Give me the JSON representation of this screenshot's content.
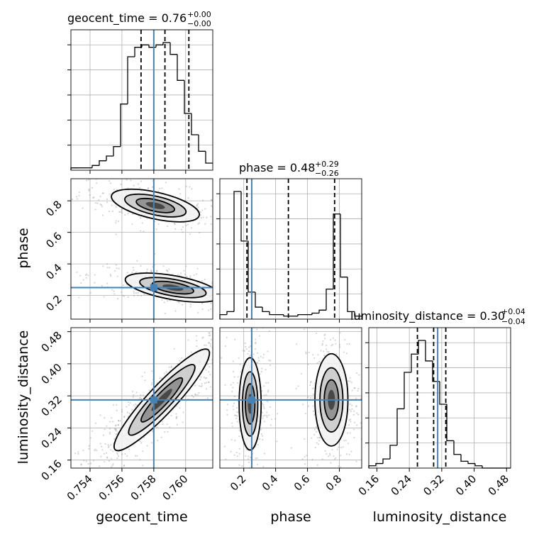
{
  "chart_data": {
    "type": "corner",
    "truth_color": "#4682b4",
    "parameters": [
      {
        "name": "geocent_time",
        "title": "geocent_time = 0.76",
        "title_sup": "+0.00",
        "title_sub": "−0.00",
        "range": [
          0.7528,
          0.7617
        ],
        "ticks": [
          0.754,
          0.756,
          0.758,
          0.76
        ],
        "tick_labels": [
          "0.754",
          "0.756",
          "0.758",
          "0.760"
        ],
        "truth": 0.758,
        "quantiles": [
          0.7572,
          0.7587,
          0.7602
        ],
        "hist_counts": [
          1,
          1,
          1,
          2,
          4,
          6,
          10,
          28,
          48,
          52,
          53,
          52,
          53,
          54,
          49,
          38,
          24,
          15,
          8,
          3
        ]
      },
      {
        "name": "phase",
        "title": "phase = 0.48",
        "title_sup": "+0.29",
        "title_sub": "−0.26",
        "range": [
          0.05,
          0.94
        ],
        "ticks": [
          0.2,
          0.4,
          0.6,
          0.8
        ],
        "tick_labels": [
          "0.2",
          "0.4",
          "0.6",
          "0.8"
        ],
        "truth": 0.25,
        "quantiles": [
          0.22,
          0.48,
          0.77
        ],
        "hist_counts": [
          3,
          5,
          85,
          52,
          18,
          8,
          5,
          3,
          3,
          2,
          2,
          3,
          3,
          4,
          6,
          20,
          70,
          28,
          5,
          2
        ]
      },
      {
        "name": "luminosity_distance",
        "title": "luminosity_distance = 0.30",
        "title_sup": "+0.04",
        "title_sub": "−0.04",
        "range": [
          0.14,
          0.49
        ],
        "ticks": [
          0.16,
          0.24,
          0.32,
          0.4,
          0.48
        ],
        "tick_labels": [
          "0.16",
          "0.24",
          "0.32",
          "0.40",
          "0.48"
        ],
        "truth": 0.31,
        "quantiles": [
          0.26,
          0.3,
          0.33
        ],
        "hist_counts": [
          1,
          2,
          4,
          10,
          26,
          42,
          50,
          56,
          47,
          38,
          28,
          12,
          6,
          3,
          2,
          1,
          0,
          0,
          0,
          0
        ]
      }
    ],
    "yticks_left": {
      "phase": [
        "0.2",
        "0.4",
        "0.6",
        "0.8"
      ],
      "luminosity_distance": [
        "0.16",
        "0.24",
        "0.32",
        "0.40",
        "0.48"
      ]
    },
    "contour_blobs": {
      "phase_vs_geocent_time": [
        {
          "cx": 0.7581,
          "cy": 0.77,
          "sx": 0.0012,
          "sy": 0.045,
          "rho": -0.55,
          "n": 320
        },
        {
          "cx": 0.7592,
          "cy": 0.25,
          "sx": 0.0013,
          "sy": 0.04,
          "rho": -0.55,
          "n": 380
        }
      ],
      "luminosity_distance_vs_geocent_time": [
        {
          "cx": 0.7585,
          "cy": 0.31,
          "sx": 0.0013,
          "sy": 0.055,
          "rho": 0.92,
          "n": 700
        }
      ],
      "luminosity_distance_vs_phase": [
        {
          "cx": 0.24,
          "cy": 0.3,
          "sx": 0.03,
          "sy": 0.05,
          "rho": 0.0,
          "n": 350
        },
        {
          "cx": 0.75,
          "cy": 0.31,
          "sx": 0.045,
          "sy": 0.05,
          "rho": 0.0,
          "n": 350
        }
      ]
    },
    "grid": true
  }
}
